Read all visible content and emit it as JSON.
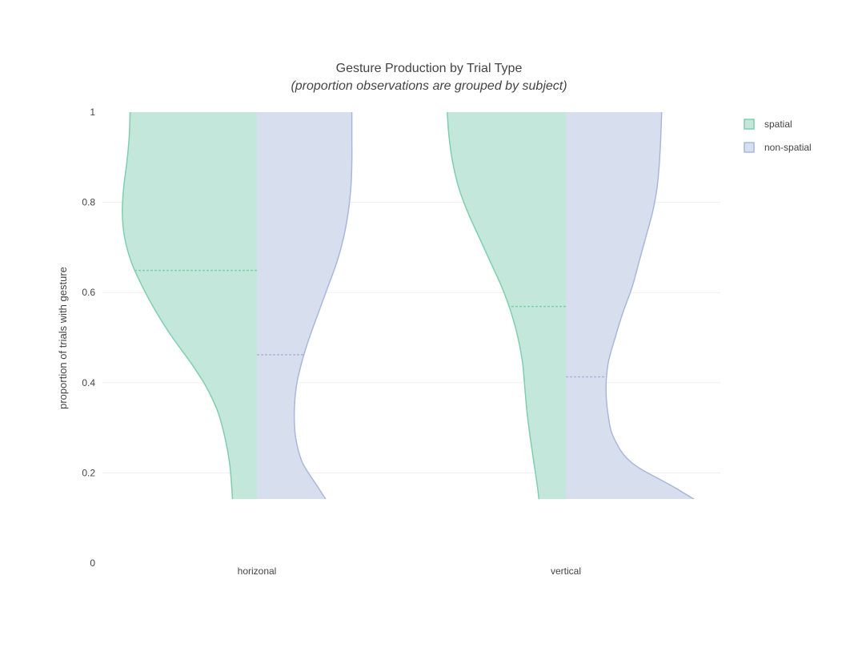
{
  "chart_data": {
    "type": "violin",
    "title": "Gesture Production by Trial Type",
    "subtitle": "(proportion observations are grouped by subject)",
    "xlabel": "",
    "ylabel": "proportion of trials with gesture",
    "ylim": [
      0,
      1
    ],
    "yticks": [
      "0",
      "0.2",
      "0.4",
      "0.6",
      "0.8",
      "1"
    ],
    "categories": [
      "horizonal",
      "vertical"
    ],
    "grid": true,
    "legend_position": "top-right",
    "clip_range": [
      0.142,
      1
    ],
    "series": [
      {
        "name": "spatial",
        "side": "negative",
        "line_color": "#7fcfae",
        "fill_color": "#c3e7da",
        "groups": [
          {
            "category": "horizonal",
            "mean": 0.649,
            "density_widths": [
              0.48,
              0.5,
              0.52,
              0.55,
              0.6,
              0.7,
              0.85,
              1.1,
              1.45,
              1.85,
              2.2,
              2.5,
              2.75,
              2.9,
              2.95,
              2.92,
              2.85,
              2.8,
              2.78
            ]
          },
          {
            "category": "vertical",
            "mean": 0.569,
            "density_widths": [
              0.5,
              0.52,
              0.56,
              0.62,
              0.7,
              0.78,
              0.85,
              0.9,
              0.95,
              1.05,
              1.2,
              1.4,
              1.65,
              1.9,
              2.15,
              2.35,
              2.48,
              2.56,
              2.6
            ]
          }
        ]
      },
      {
        "name": "non-spatial",
        "side": "positive",
        "line_color": "#a9b7da",
        "fill_color": "#d7deee",
        "groups": [
          {
            "category": "horizonal",
            "mean": 0.462,
            "density_widths": [
              2.45,
              2.05,
              1.7,
              1.35,
              1.0,
              0.85,
              0.82,
              0.86,
              0.98,
              1.15,
              1.35,
              1.55,
              1.75,
              1.9,
              2.0,
              2.06,
              2.08,
              2.08,
              2.08
            ]
          },
          {
            "category": "vertical",
            "mean": 0.413,
            "density_widths": [
              5.0,
              4.2,
              3.3,
              2.4,
              1.45,
              1.05,
              0.92,
              0.88,
              0.93,
              1.08,
              1.25,
              1.45,
              1.6,
              1.75,
              1.9,
              2.0,
              2.05,
              2.08,
              2.1
            ]
          }
        ]
      }
    ]
  }
}
